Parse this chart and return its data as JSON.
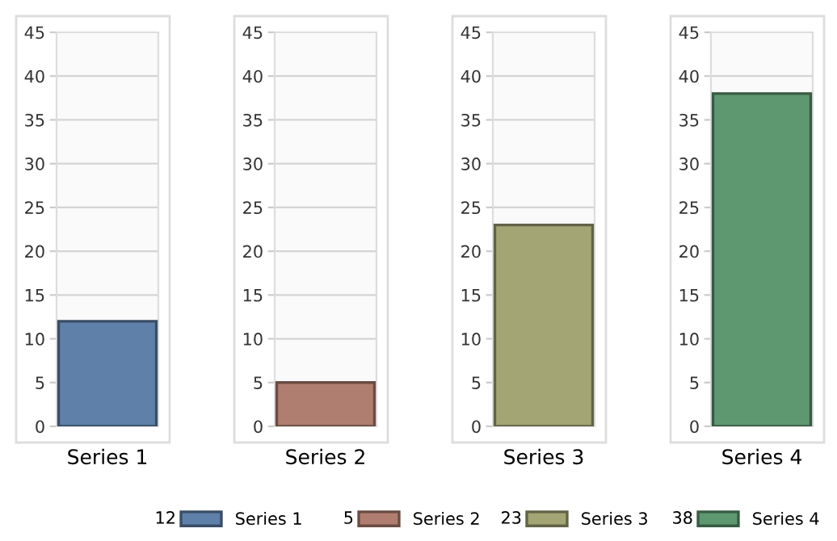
{
  "chart_data": [
    {
      "type": "bar",
      "categories": [
        "Series 1"
      ],
      "series": [
        {
          "name": "Series 1",
          "color": "#5f80a8",
          "values": [
            12
          ]
        }
      ],
      "ylim": [
        0,
        45
      ],
      "yticks": [
        0,
        5,
        10,
        15,
        20,
        25,
        30,
        35,
        40,
        45
      ],
      "grid": "y",
      "legend": "bottom",
      "annotations": [
        "12"
      ]
    },
    {
      "type": "bar",
      "categories": [
        "Series 2"
      ],
      "series": [
        {
          "name": "Series 2",
          "color": "#b07e70",
          "values": [
            5
          ]
        }
      ],
      "ylim": [
        0,
        45
      ],
      "yticks": [
        0,
        5,
        10,
        15,
        20,
        25,
        30,
        35,
        40,
        45
      ],
      "grid": "y",
      "legend": "bottom",
      "annotations": [
        "5"
      ]
    },
    {
      "type": "bar",
      "categories": [
        "Series 3"
      ],
      "series": [
        {
          "name": "Series 3",
          "color": "#a3a574",
          "values": [
            23
          ]
        }
      ],
      "ylim": [
        0,
        45
      ],
      "yticks": [
        0,
        5,
        10,
        15,
        20,
        25,
        30,
        35,
        40,
        45
      ],
      "grid": "y",
      "legend": "bottom",
      "annotations": [
        "23"
      ]
    },
    {
      "type": "bar",
      "categories": [
        "Series 4"
      ],
      "series": [
        {
          "name": "Series 4",
          "color": "#5e9870",
          "values": [
            38
          ]
        }
      ],
      "ylim": [
        0,
        45
      ],
      "yticks": [
        0,
        5,
        10,
        15,
        20,
        25,
        30,
        35,
        40,
        45
      ],
      "grid": "y",
      "legend": "bottom",
      "annotations": [
        "38"
      ]
    }
  ]
}
